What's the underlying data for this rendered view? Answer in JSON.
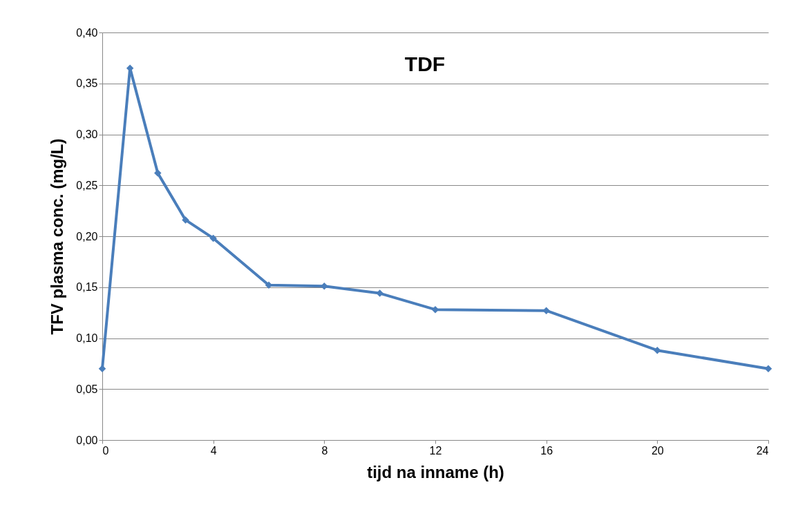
{
  "chart_data": {
    "type": "line",
    "title": "TDF",
    "xlabel": "tijd na inname (h)",
    "ylabel": "TFV plasma conc. (mg/L)",
    "x": [
      0,
      1,
      2,
      3,
      4,
      6,
      8,
      10,
      12,
      16,
      20,
      24
    ],
    "series": [
      {
        "color": "#4a7ebb",
        "values": [
          0.07,
          0.365,
          0.262,
          0.216,
          0.198,
          0.152,
          0.151,
          0.144,
          0.128,
          0.127,
          0.088,
          0.07
        ]
      }
    ],
    "xlim": [
      0,
      24
    ],
    "xticks": [
      0,
      4,
      8,
      12,
      16,
      20,
      24
    ],
    "ylim": [
      0,
      0.4
    ],
    "yticks": [
      {
        "value": 0,
        "label": "0,00"
      },
      {
        "value": 0.05,
        "label": "0,05"
      },
      {
        "value": 0.1,
        "label": "0,10"
      },
      {
        "value": 0.15,
        "label": "0,15"
      },
      {
        "value": 0.2,
        "label": "0,20"
      },
      {
        "value": 0.25,
        "label": "0,25"
      },
      {
        "value": 0.3,
        "label": "0,30"
      },
      {
        "value": 0.35,
        "label": "0,35"
      },
      {
        "value": 0.4,
        "label": "0,40"
      }
    ],
    "grid": "y",
    "marker": "diamond",
    "line_style": "solid"
  }
}
